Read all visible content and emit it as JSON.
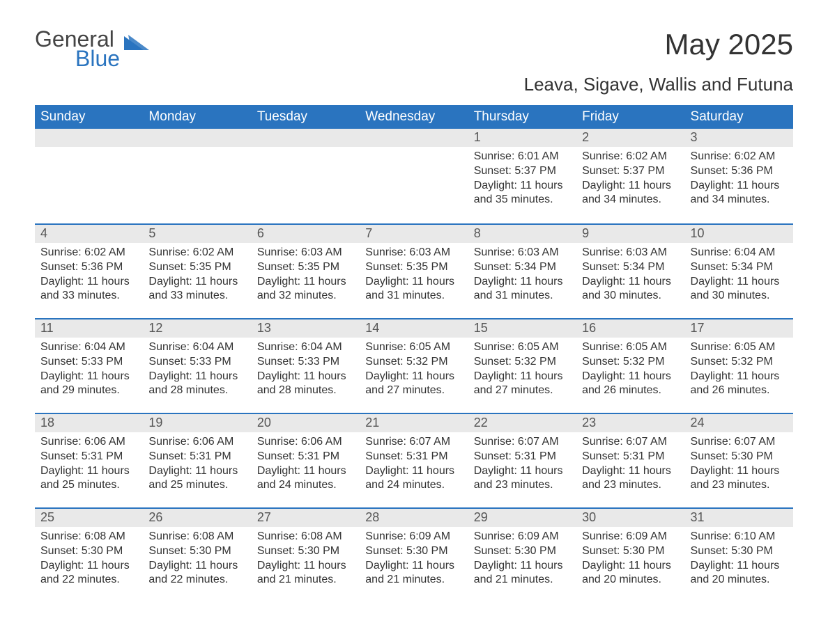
{
  "logo": {
    "word1": "General",
    "word2": "Blue",
    "text_color": "#444444",
    "accent_color": "#2a74bf"
  },
  "title": {
    "month_year": "May 2025",
    "location": "Leava, Sigave, Wallis and Futuna"
  },
  "colors": {
    "header_bg": "#2a74bf",
    "header_text": "#ffffff",
    "daynum_bg": "#e9e9e9",
    "daynum_text": "#555555",
    "body_text": "#333333",
    "page_bg": "#ffffff",
    "week_border": "#2a74bf"
  },
  "weekdays": [
    "Sunday",
    "Monday",
    "Tuesday",
    "Wednesday",
    "Thursday",
    "Friday",
    "Saturday"
  ],
  "weeks": [
    [
      {
        "n": "",
        "sunrise": "",
        "sunset": "",
        "daylight": ""
      },
      {
        "n": "",
        "sunrise": "",
        "sunset": "",
        "daylight": ""
      },
      {
        "n": "",
        "sunrise": "",
        "sunset": "",
        "daylight": ""
      },
      {
        "n": "",
        "sunrise": "",
        "sunset": "",
        "daylight": ""
      },
      {
        "n": "1",
        "sunrise": "Sunrise: 6:01 AM",
        "sunset": "Sunset: 5:37 PM",
        "daylight": "Daylight: 11 hours and 35 minutes."
      },
      {
        "n": "2",
        "sunrise": "Sunrise: 6:02 AM",
        "sunset": "Sunset: 5:37 PM",
        "daylight": "Daylight: 11 hours and 34 minutes."
      },
      {
        "n": "3",
        "sunrise": "Sunrise: 6:02 AM",
        "sunset": "Sunset: 5:36 PM",
        "daylight": "Daylight: 11 hours and 34 minutes."
      }
    ],
    [
      {
        "n": "4",
        "sunrise": "Sunrise: 6:02 AM",
        "sunset": "Sunset: 5:36 PM",
        "daylight": "Daylight: 11 hours and 33 minutes."
      },
      {
        "n": "5",
        "sunrise": "Sunrise: 6:02 AM",
        "sunset": "Sunset: 5:35 PM",
        "daylight": "Daylight: 11 hours and 33 minutes."
      },
      {
        "n": "6",
        "sunrise": "Sunrise: 6:03 AM",
        "sunset": "Sunset: 5:35 PM",
        "daylight": "Daylight: 11 hours and 32 minutes."
      },
      {
        "n": "7",
        "sunrise": "Sunrise: 6:03 AM",
        "sunset": "Sunset: 5:35 PM",
        "daylight": "Daylight: 11 hours and 31 minutes."
      },
      {
        "n": "8",
        "sunrise": "Sunrise: 6:03 AM",
        "sunset": "Sunset: 5:34 PM",
        "daylight": "Daylight: 11 hours and 31 minutes."
      },
      {
        "n": "9",
        "sunrise": "Sunrise: 6:03 AM",
        "sunset": "Sunset: 5:34 PM",
        "daylight": "Daylight: 11 hours and 30 minutes."
      },
      {
        "n": "10",
        "sunrise": "Sunrise: 6:04 AM",
        "sunset": "Sunset: 5:34 PM",
        "daylight": "Daylight: 11 hours and 30 minutes."
      }
    ],
    [
      {
        "n": "11",
        "sunrise": "Sunrise: 6:04 AM",
        "sunset": "Sunset: 5:33 PM",
        "daylight": "Daylight: 11 hours and 29 minutes."
      },
      {
        "n": "12",
        "sunrise": "Sunrise: 6:04 AM",
        "sunset": "Sunset: 5:33 PM",
        "daylight": "Daylight: 11 hours and 28 minutes."
      },
      {
        "n": "13",
        "sunrise": "Sunrise: 6:04 AM",
        "sunset": "Sunset: 5:33 PM",
        "daylight": "Daylight: 11 hours and 28 minutes."
      },
      {
        "n": "14",
        "sunrise": "Sunrise: 6:05 AM",
        "sunset": "Sunset: 5:32 PM",
        "daylight": "Daylight: 11 hours and 27 minutes."
      },
      {
        "n": "15",
        "sunrise": "Sunrise: 6:05 AM",
        "sunset": "Sunset: 5:32 PM",
        "daylight": "Daylight: 11 hours and 27 minutes."
      },
      {
        "n": "16",
        "sunrise": "Sunrise: 6:05 AM",
        "sunset": "Sunset: 5:32 PM",
        "daylight": "Daylight: 11 hours and 26 minutes."
      },
      {
        "n": "17",
        "sunrise": "Sunrise: 6:05 AM",
        "sunset": "Sunset: 5:32 PM",
        "daylight": "Daylight: 11 hours and 26 minutes."
      }
    ],
    [
      {
        "n": "18",
        "sunrise": "Sunrise: 6:06 AM",
        "sunset": "Sunset: 5:31 PM",
        "daylight": "Daylight: 11 hours and 25 minutes."
      },
      {
        "n": "19",
        "sunrise": "Sunrise: 6:06 AM",
        "sunset": "Sunset: 5:31 PM",
        "daylight": "Daylight: 11 hours and 25 minutes."
      },
      {
        "n": "20",
        "sunrise": "Sunrise: 6:06 AM",
        "sunset": "Sunset: 5:31 PM",
        "daylight": "Daylight: 11 hours and 24 minutes."
      },
      {
        "n": "21",
        "sunrise": "Sunrise: 6:07 AM",
        "sunset": "Sunset: 5:31 PM",
        "daylight": "Daylight: 11 hours and 24 minutes."
      },
      {
        "n": "22",
        "sunrise": "Sunrise: 6:07 AM",
        "sunset": "Sunset: 5:31 PM",
        "daylight": "Daylight: 11 hours and 23 minutes."
      },
      {
        "n": "23",
        "sunrise": "Sunrise: 6:07 AM",
        "sunset": "Sunset: 5:31 PM",
        "daylight": "Daylight: 11 hours and 23 minutes."
      },
      {
        "n": "24",
        "sunrise": "Sunrise: 6:07 AM",
        "sunset": "Sunset: 5:30 PM",
        "daylight": "Daylight: 11 hours and 23 minutes."
      }
    ],
    [
      {
        "n": "25",
        "sunrise": "Sunrise: 6:08 AM",
        "sunset": "Sunset: 5:30 PM",
        "daylight": "Daylight: 11 hours and 22 minutes."
      },
      {
        "n": "26",
        "sunrise": "Sunrise: 6:08 AM",
        "sunset": "Sunset: 5:30 PM",
        "daylight": "Daylight: 11 hours and 22 minutes."
      },
      {
        "n": "27",
        "sunrise": "Sunrise: 6:08 AM",
        "sunset": "Sunset: 5:30 PM",
        "daylight": "Daylight: 11 hours and 21 minutes."
      },
      {
        "n": "28",
        "sunrise": "Sunrise: 6:09 AM",
        "sunset": "Sunset: 5:30 PM",
        "daylight": "Daylight: 11 hours and 21 minutes."
      },
      {
        "n": "29",
        "sunrise": "Sunrise: 6:09 AM",
        "sunset": "Sunset: 5:30 PM",
        "daylight": "Daylight: 11 hours and 21 minutes."
      },
      {
        "n": "30",
        "sunrise": "Sunrise: 6:09 AM",
        "sunset": "Sunset: 5:30 PM",
        "daylight": "Daylight: 11 hours and 20 minutes."
      },
      {
        "n": "31",
        "sunrise": "Sunrise: 6:10 AM",
        "sunset": "Sunset: 5:30 PM",
        "daylight": "Daylight: 11 hours and 20 minutes."
      }
    ]
  ]
}
